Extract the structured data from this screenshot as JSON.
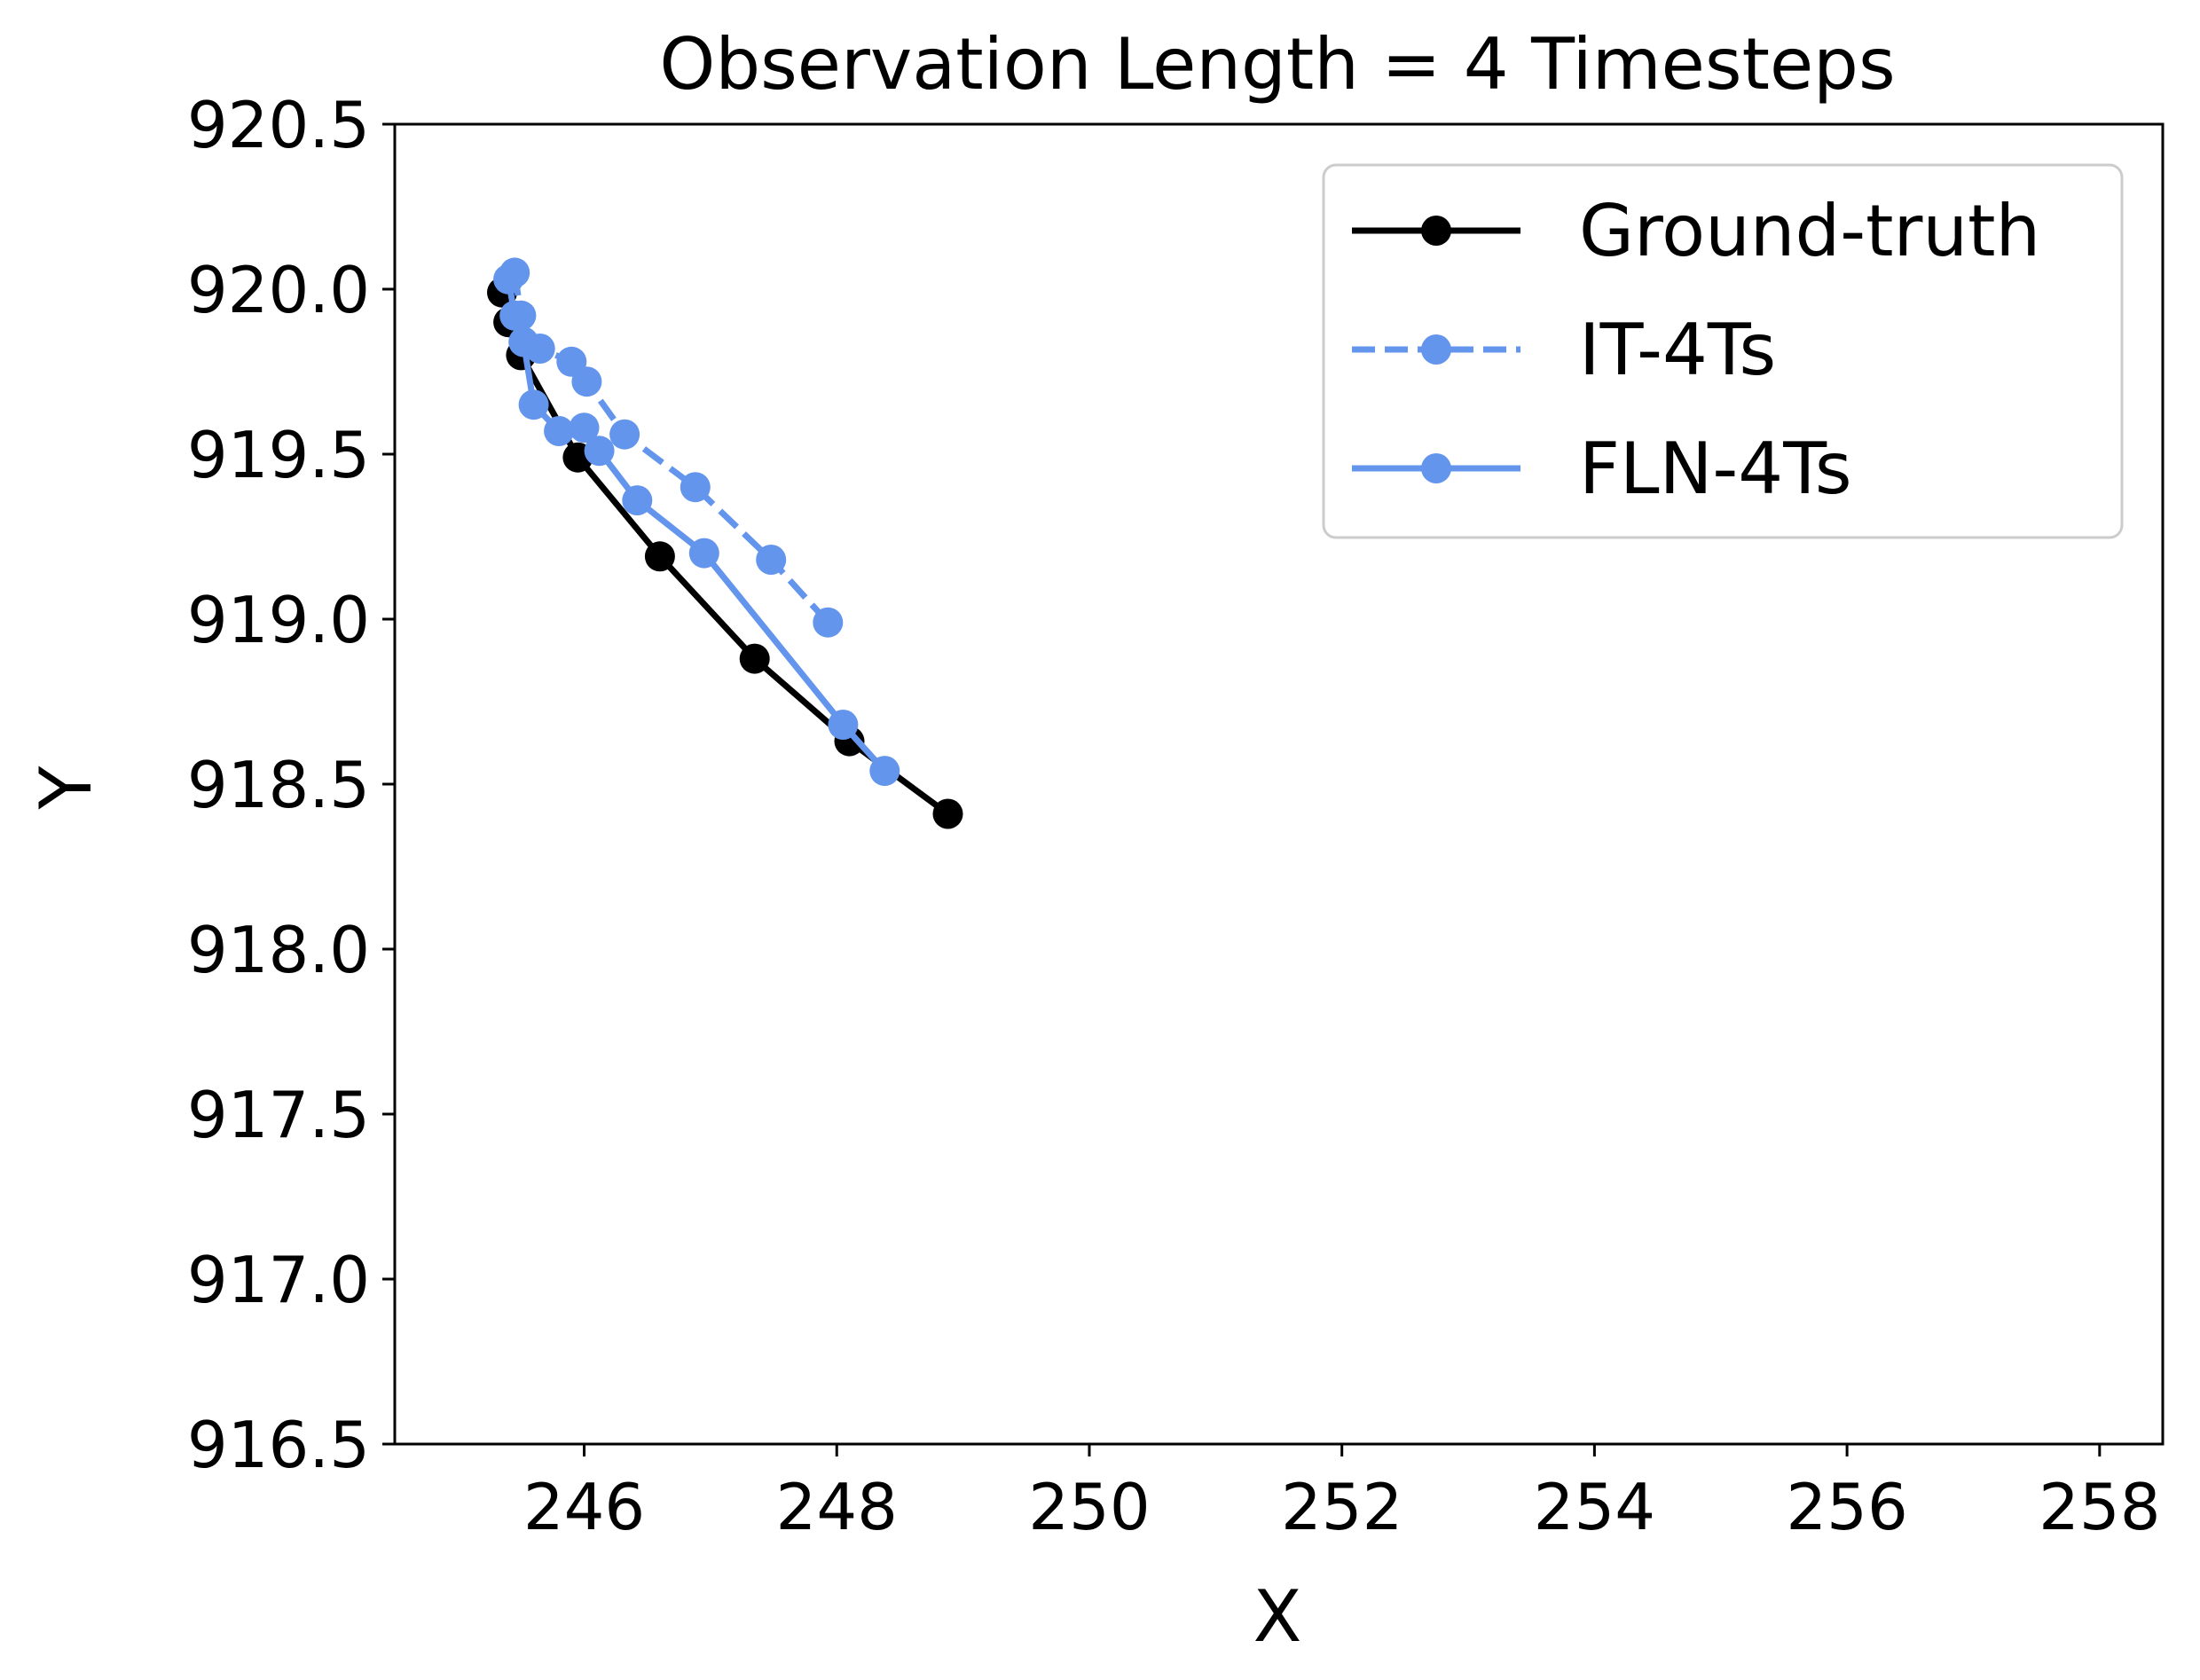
{
  "chart_data": {
    "type": "line",
    "title": "Observation Length = 4 Timesteps",
    "xlabel": "X",
    "ylabel": "Y",
    "xlim": [
      244.5,
      258.5
    ],
    "ylim": [
      916.5,
      920.5
    ],
    "xticks": [
      246,
      248,
      250,
      252,
      254,
      256,
      258
    ],
    "yticks": [
      916.5,
      917.0,
      917.5,
      918.0,
      918.5,
      919.0,
      919.5,
      920.0,
      920.5
    ],
    "xtick_labels": [
      "246",
      "248",
      "250",
      "252",
      "254",
      "256",
      "258"
    ],
    "ytick_labels": [
      "916.5",
      "917.0",
      "917.5",
      "918.0",
      "918.5",
      "919.0",
      "919.5",
      "920.0",
      "920.5"
    ],
    "grid": false,
    "legend_position": "top-right",
    "series": [
      {
        "name": "Ground-truth",
        "color": "#000000",
        "linestyle": "solid",
        "marker": "circle",
        "x": [
          245.35,
          245.4,
          245.5,
          245.95,
          246.6,
          247.35,
          248.1,
          248.88
        ],
        "y": [
          919.99,
          919.9,
          919.8,
          919.49,
          919.19,
          918.88,
          918.63,
          918.41
        ]
      },
      {
        "name": "IT-4Ts",
        "color": "#6495ED",
        "linestyle": "dashed",
        "marker": "circle",
        "x": [
          245.45,
          245.5,
          245.65,
          245.9,
          246.02,
          246.32,
          246.88,
          247.48,
          247.93
        ],
        "y": [
          920.05,
          919.92,
          919.82,
          919.78,
          919.72,
          919.56,
          919.4,
          919.18,
          918.99
        ]
      },
      {
        "name": "FLN-4Ts",
        "color": "#6495ED",
        "linestyle": "solid",
        "marker": "circle",
        "x": [
          245.4,
          245.45,
          245.52,
          245.6,
          245.8,
          246.0,
          246.12,
          246.42,
          246.95,
          248.05,
          248.38
        ],
        "y": [
          920.03,
          919.92,
          919.84,
          919.65,
          919.57,
          919.58,
          919.51,
          919.36,
          919.2,
          918.68,
          918.54
        ]
      }
    ]
  }
}
